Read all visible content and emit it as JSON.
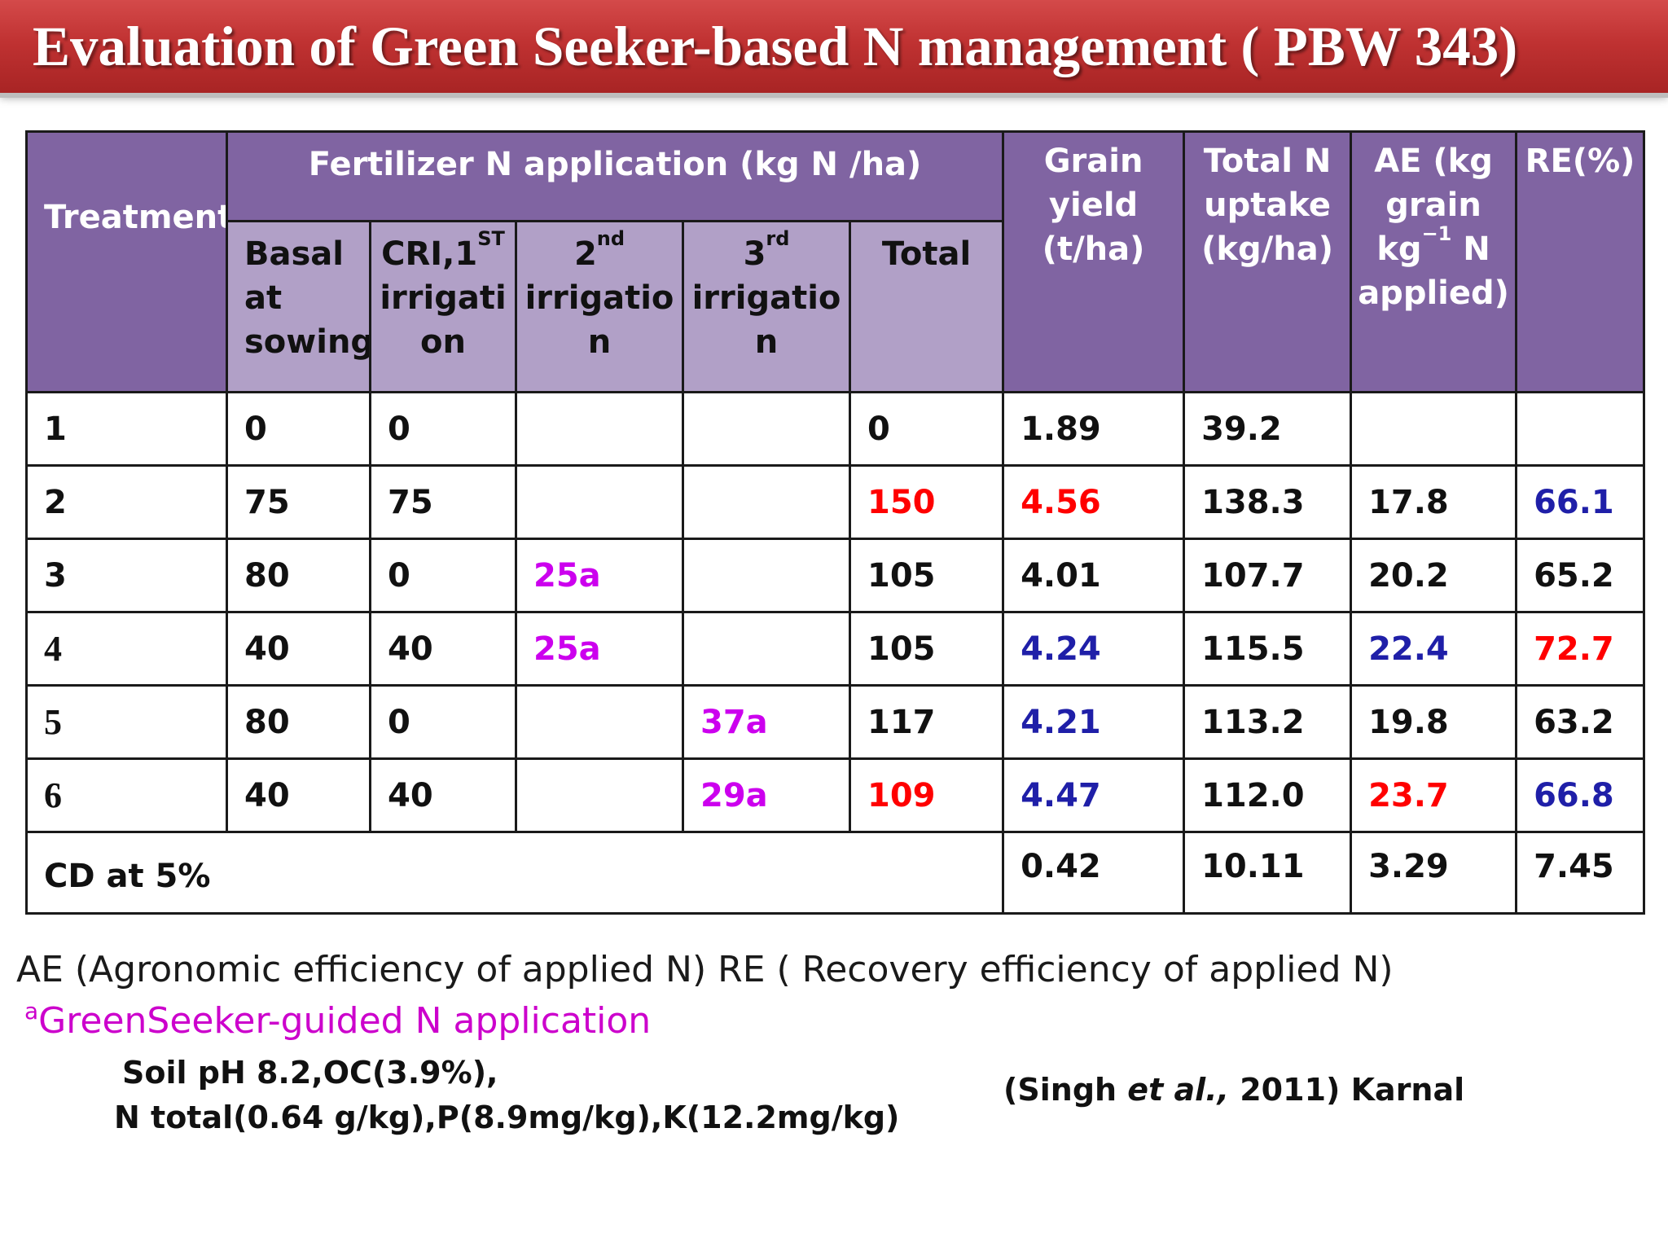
{
  "title": "Evaluation of Green Seeker-based N management ( PBW 343)",
  "colors": {
    "title_bg": "#c03232",
    "header_dark": "#8064a2",
    "header_light": "#b1a0c7",
    "red": "#ff0000",
    "blue": "#1f1fa8",
    "magenta": "#cc00ee"
  },
  "table": {
    "headers": {
      "treatment": "Treatment",
      "fertilizer_group": "Fertilizer N application (kg N /ha)",
      "grain_yield": [
        "Grain",
        "yield",
        "(t/ha)"
      ],
      "total_n_uptake": [
        "Total N",
        "uptake",
        "(kg/ha)"
      ],
      "ae": {
        "l1": "AE (kg",
        "l2": "grain",
        "l3_pre": "kg",
        "l3_sup": "−1",
        "l3_post": " N",
        "l4": "applied)"
      },
      "re": "RE(%)",
      "basal": [
        "Basal",
        "at",
        "sowing"
      ],
      "cri": {
        "pre": "CRI,1",
        "sup": "ST",
        "l2": "irrigati",
        "l3": "on"
      },
      "irr2": {
        "pre": "2",
        "sup": "nd",
        "l2": "irrigatio",
        "l3": "n"
      },
      "irr3": {
        "pre": "3",
        "sup": "rd",
        "l2": "irrigatio",
        "l3": "n"
      },
      "total": "Total"
    },
    "rows": [
      {
        "treatment": "1",
        "basal": "0",
        "cri": "0",
        "irr2": "",
        "irr3": "",
        "total": "0",
        "grain_yield": "1.89",
        "n_uptake": "39.2",
        "ae": "",
        "re": ""
      },
      {
        "treatment": "2",
        "basal": "75",
        "cri": "75",
        "irr2": "",
        "irr3": "",
        "total": "150",
        "grain_yield": "4.56",
        "n_uptake": "138.3",
        "ae": "17.8",
        "re": "66.1"
      },
      {
        "treatment": "3",
        "basal": "80",
        "cri": "0",
        "irr2": "25a",
        "irr3": "",
        "total": "105",
        "grain_yield": "4.01",
        "n_uptake": "107.7",
        "ae": "20.2",
        "re": "65.2"
      },
      {
        "treatment": "4",
        "basal": "40",
        "cri": "40",
        "irr2": "25a",
        "irr3": "",
        "total": "105",
        "grain_yield": "4.24",
        "n_uptake": "115.5",
        "ae": "22.4",
        "re": "72.7"
      },
      {
        "treatment": "5",
        "basal": "80",
        "cri": "0",
        "irr2": "",
        "irr3": "37a",
        "total": "117",
        "grain_yield": "4.21",
        "n_uptake": "113.2",
        "ae": "19.8",
        "re": "63.2"
      },
      {
        "treatment": "6",
        "basal": "40",
        "cri": "40",
        "irr2": "",
        "irr3": "29a",
        "total": "109",
        "grain_yield": "4.47",
        "n_uptake": "112.0",
        "ae": "23.7",
        "re": "66.8"
      }
    ],
    "cd_row": {
      "label": "CD at 5%",
      "grain_yield": "0.42",
      "n_uptake": "10.11",
      "ae": "3.29",
      "re": "7.45"
    }
  },
  "legend": {
    "abbrev": "AE  (Agronomic efficiency of applied N) RE ( Recovery efficiency of applied N)",
    "footnote_mark": "a",
    "footnote_text": "GreenSeeker-guided N application"
  },
  "soil": {
    "line1": "Soil pH 8.2,OC(3.9%),",
    "line2": "N total(0.64 g/kg),P(8.9mg/kg),K(12.2mg/kg)"
  },
  "citation": {
    "pre": "(Singh ",
    "italic": "et al.,",
    "post": " 2011) Karnal"
  }
}
